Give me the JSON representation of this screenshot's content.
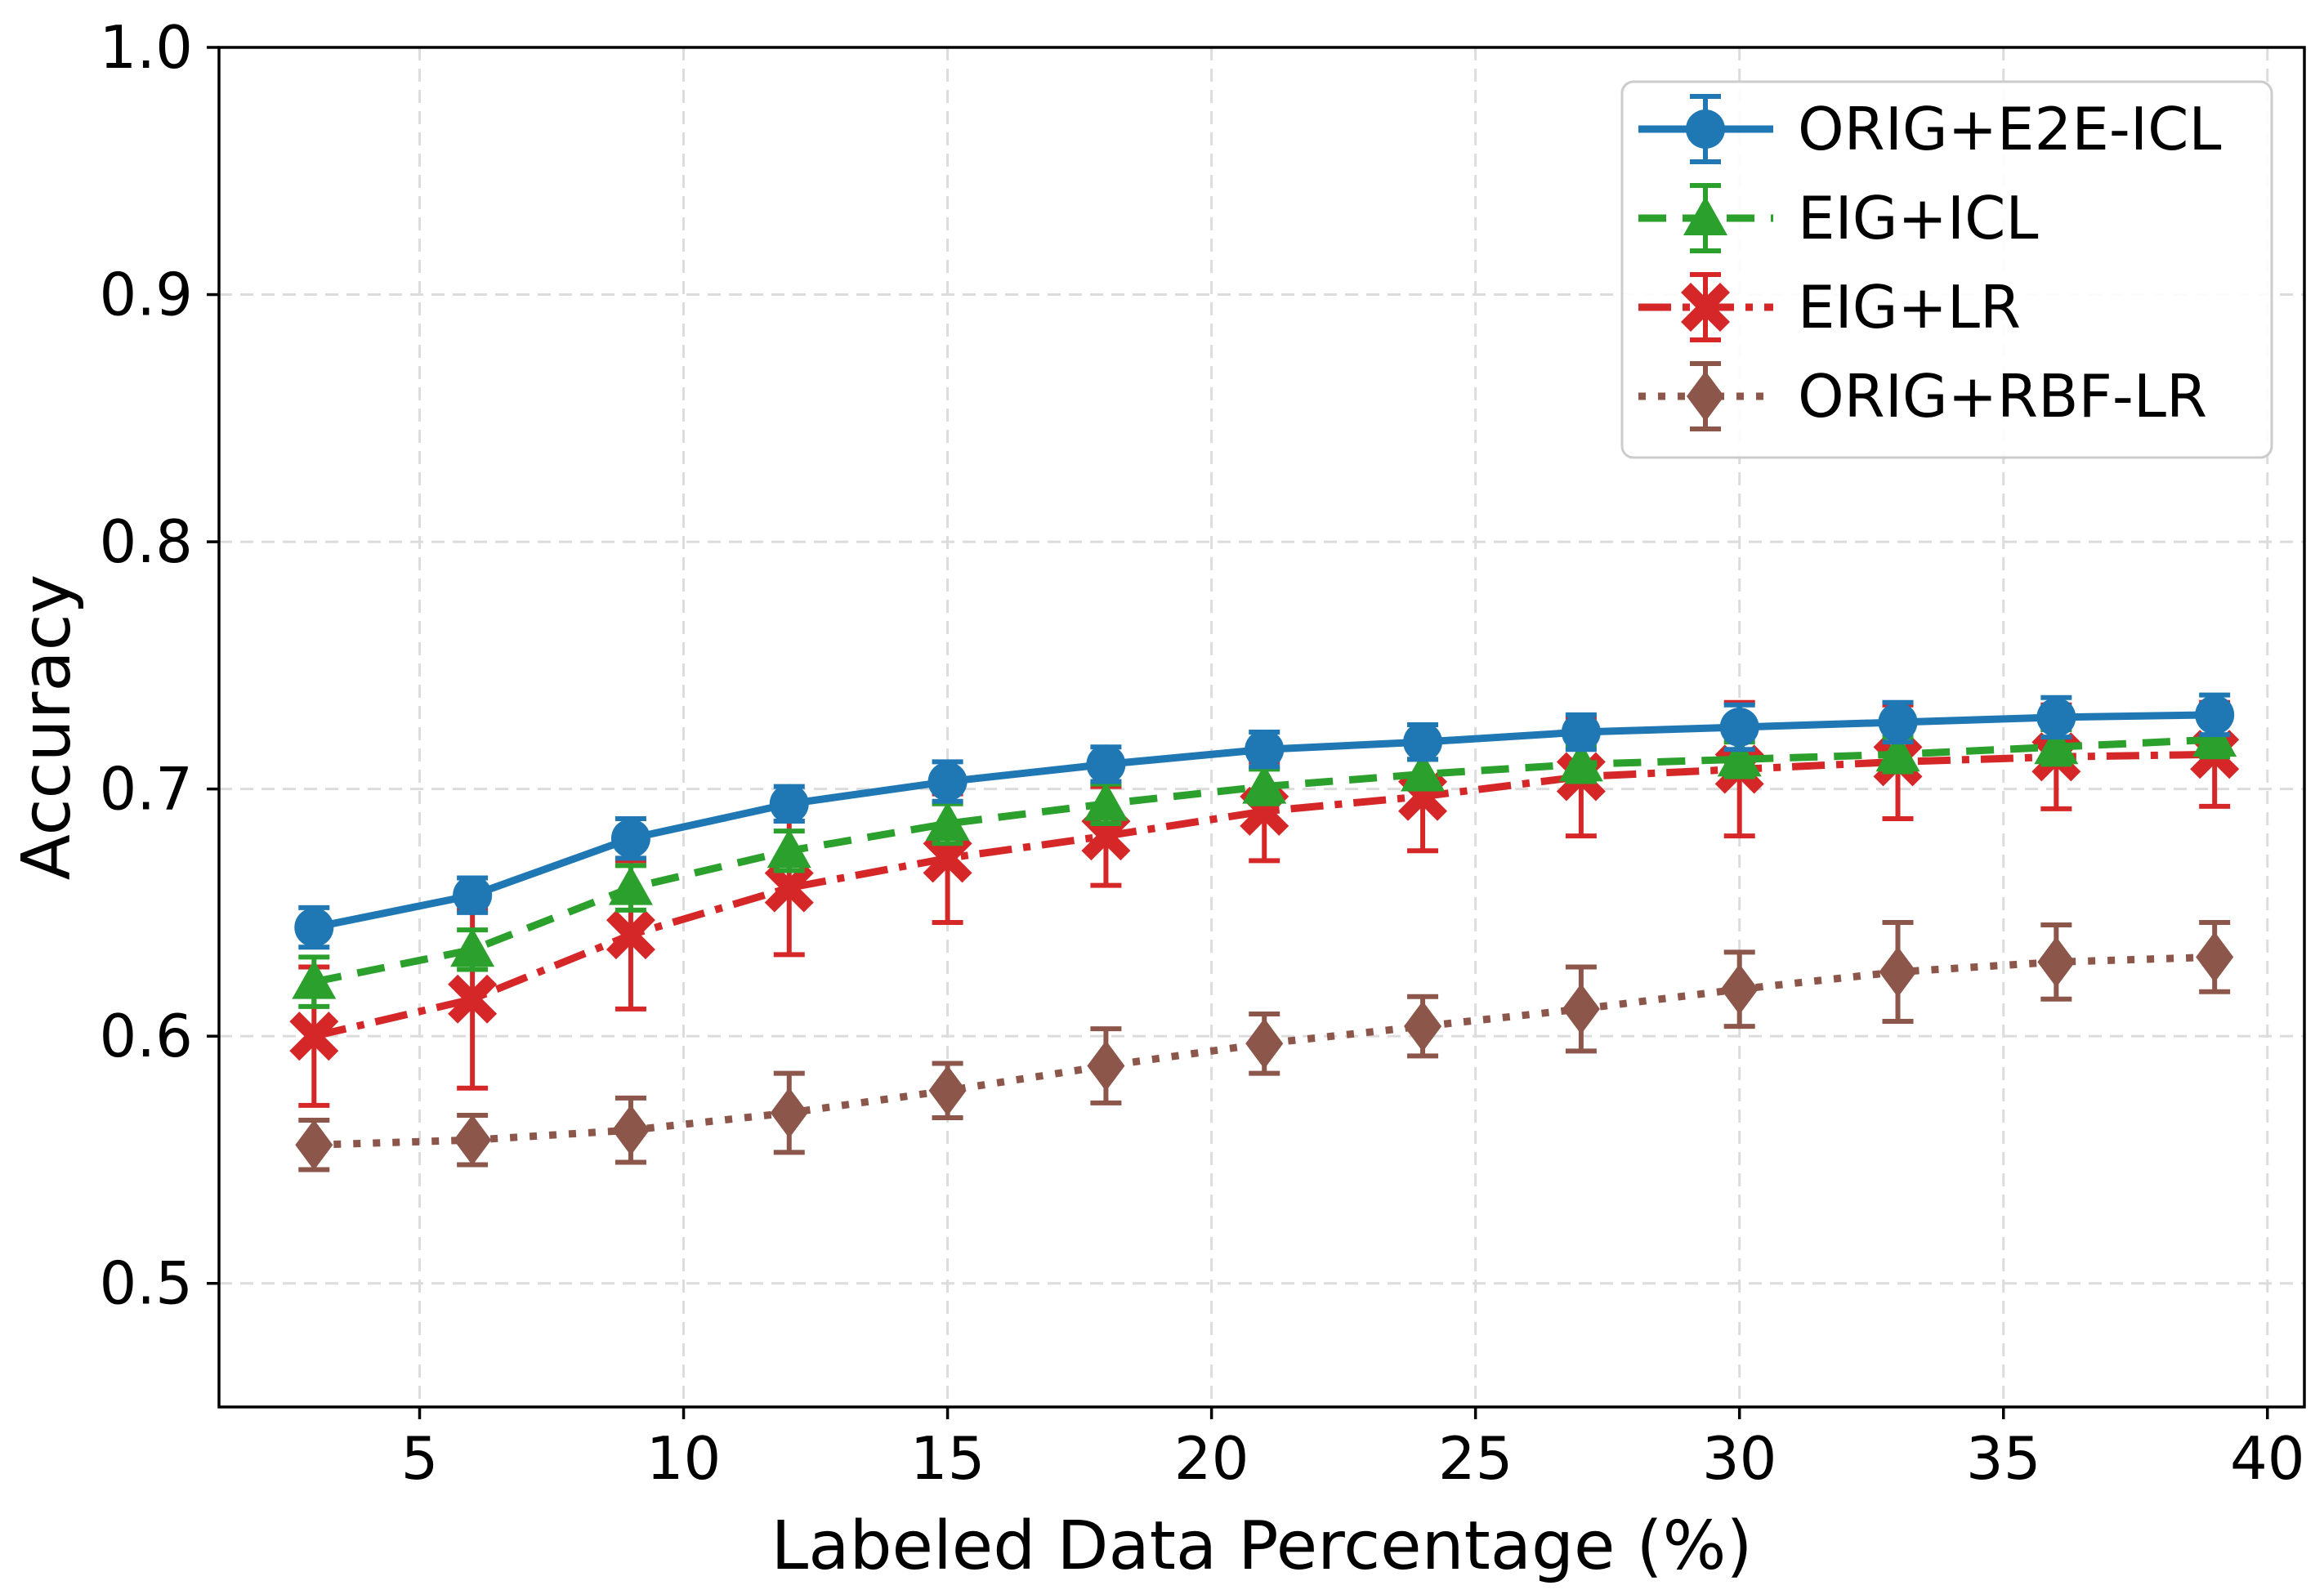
{
  "figure": {
    "background": "#ffffff",
    "spine_color": "#000000",
    "grid_color": "#dcdcdc",
    "tick_label_color": "#000000"
  },
  "chart_data": {
    "type": "line",
    "title": "",
    "xlabel": "Labeled Data Percentage (%)",
    "ylabel": "Accuracy",
    "xlim": [
      1.2,
      40.7
    ],
    "ylim": [
      0.45,
      1.0
    ],
    "xticks": [
      5,
      10,
      15,
      20,
      25,
      30,
      35,
      40
    ],
    "yticks": [
      0.5,
      0.6,
      0.7,
      0.8,
      0.9,
      1.0
    ],
    "ytick_labels": [
      "0.5",
      "0.6",
      "0.7",
      "0.8",
      "0.9",
      "1.0"
    ],
    "grid": true,
    "legend_position": "upper right",
    "x": [
      3,
      6,
      9,
      12,
      15,
      18,
      21,
      24,
      27,
      30,
      33,
      36,
      39
    ],
    "series": [
      {
        "name": "ORIG+E2E-ICL",
        "color": "#1f77b4",
        "linestyle": "solid",
        "marker": "circle",
        "values": [
          0.644,
          0.657,
          0.68,
          0.694,
          0.703,
          0.71,
          0.716,
          0.719,
          0.723,
          0.725,
          0.727,
          0.729,
          0.73
        ],
        "errors": [
          0.008,
          0.007,
          0.008,
          0.007,
          0.008,
          0.007,
          0.007,
          0.007,
          0.007,
          0.009,
          0.008,
          0.008,
          0.008
        ]
      },
      {
        "name": "EIG+ICL",
        "color": "#2ca02c",
        "linestyle": "dashed",
        "marker": "triangle",
        "values": [
          0.622,
          0.635,
          0.66,
          0.675,
          0.686,
          0.694,
          0.701,
          0.706,
          0.71,
          0.712,
          0.714,
          0.717,
          0.72
        ],
        "errors": [
          0.01,
          0.008,
          0.009,
          0.008,
          0.008,
          0.008,
          0.007,
          0.006,
          0.007,
          0.007,
          0.007,
          0.007,
          0.007
        ]
      },
      {
        "name": "EIG+LR",
        "color": "#d62728",
        "linestyle": "dashdot",
        "marker": "x",
        "values": [
          0.6,
          0.615,
          0.641,
          0.66,
          0.672,
          0.681,
          0.691,
          0.697,
          0.705,
          0.708,
          0.711,
          0.713,
          0.714
        ],
        "errors": [
          0.028,
          0.036,
          0.03,
          0.027,
          0.026,
          0.02,
          0.02,
          0.022,
          0.024,
          0.027,
          0.023,
          0.021,
          0.021
        ]
      },
      {
        "name": "ORIG+RBF-LR",
        "color": "#8c564b",
        "linestyle": "dotted",
        "marker": "diamond",
        "values": [
          0.556,
          0.558,
          0.562,
          0.569,
          0.578,
          0.588,
          0.597,
          0.604,
          0.611,
          0.619,
          0.626,
          0.63,
          0.632
        ],
        "errors": [
          0.01,
          0.01,
          0.013,
          0.016,
          0.011,
          0.015,
          0.012,
          0.012,
          0.017,
          0.015,
          0.02,
          0.015,
          0.014
        ]
      }
    ],
    "draw_order": [
      2,
      1,
      0,
      3
    ]
  }
}
